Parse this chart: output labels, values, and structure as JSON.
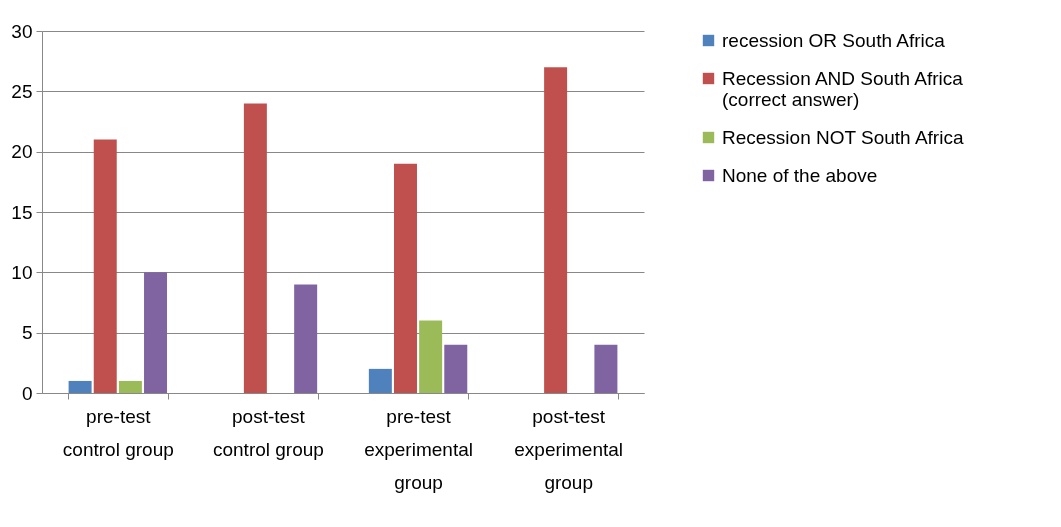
{
  "chart_data": {
    "type": "bar",
    "categories": [
      "pre-test control group",
      "post-test control group",
      "pre-test experimental group",
      "post-test experimental group"
    ],
    "series": [
      {
        "name": "recession OR South Africa",
        "color": "#4f81bd",
        "values": [
          1,
          0,
          2,
          0
        ]
      },
      {
        "name": "Recession AND South Africa (correct answer)",
        "color": "#c0504d",
        "values": [
          21,
          24,
          19,
          27
        ]
      },
      {
        "name": "Recession NOT South Africa",
        "color": "#9bbb59",
        "values": [
          1,
          0,
          6,
          0
        ]
      },
      {
        "name": "None of the above",
        "color": "#8064a2",
        "values": [
          10,
          9,
          4,
          4
        ]
      }
    ],
    "ylim": [
      0,
      30
    ],
    "yticks": [
      0,
      5,
      10,
      15,
      20,
      25,
      30
    ],
    "grid": "y",
    "legend": "right"
  }
}
